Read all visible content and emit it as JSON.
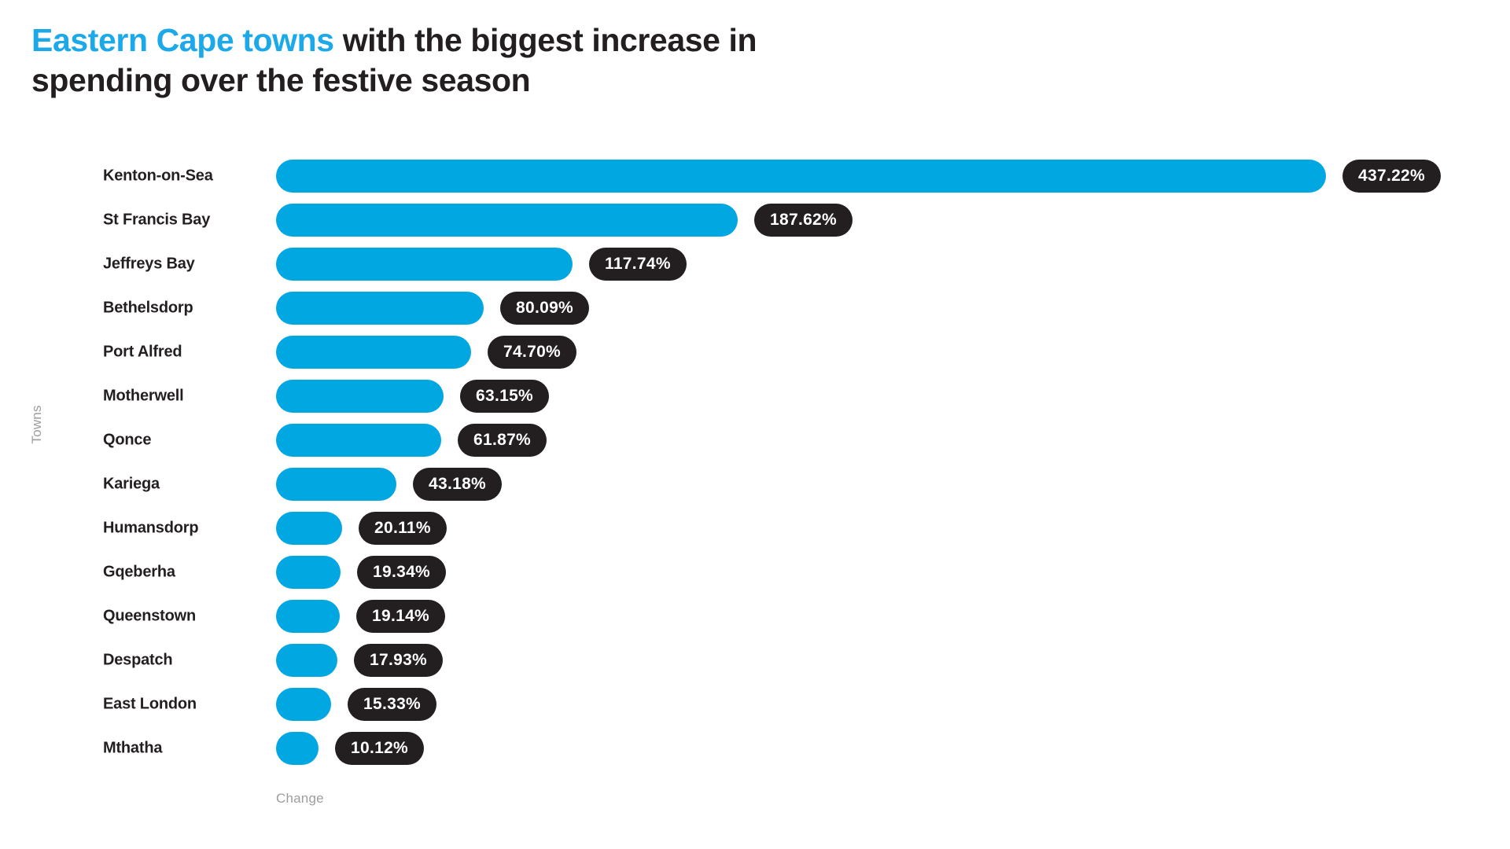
{
  "title": {
    "accent": "Eastern Cape towns",
    "rest": "with the biggest increase in spending over the festive season"
  },
  "colors": {
    "accent_blue": "#1ca9e9",
    "bar_blue": "#00a7e0",
    "dark": "#231f20",
    "axis_gray": "#9d9d9c",
    "badge_text": "#ffffff",
    "background": "#ffffff"
  },
  "chart_data": {
    "type": "bar",
    "orientation": "horizontal",
    "title": "Eastern Cape towns with the biggest increase in spending over the festive season",
    "xlabel": "Change",
    "ylabel": "Towns",
    "categories": [
      "Kenton-on-Sea",
      "St Francis Bay",
      "Jeffreys Bay",
      "Bethelsdorp",
      "Port Alfred",
      "Motherwell",
      "Qonce",
      "Kariega",
      "Humansdorp",
      "Gqeberha",
      "Queenstown",
      "Despatch",
      "East London",
      "Mthatha"
    ],
    "values": [
      437.22,
      187.62,
      117.74,
      80.09,
      74.7,
      63.15,
      61.87,
      43.18,
      20.11,
      19.34,
      19.14,
      17.93,
      15.33,
      10.12
    ],
    "labels": [
      "437.22%",
      "187.62%",
      "117.74%",
      "80.09%",
      "74.70%",
      "63.15%",
      "61.87%",
      "43.18%",
      "20.11%",
      "19.34%",
      "19.14%",
      "17.93%",
      "15.33%",
      "10.12%"
    ],
    "value_unit": "%",
    "xlim": [
      0,
      437.22
    ],
    "grid": false,
    "legend": false
  }
}
